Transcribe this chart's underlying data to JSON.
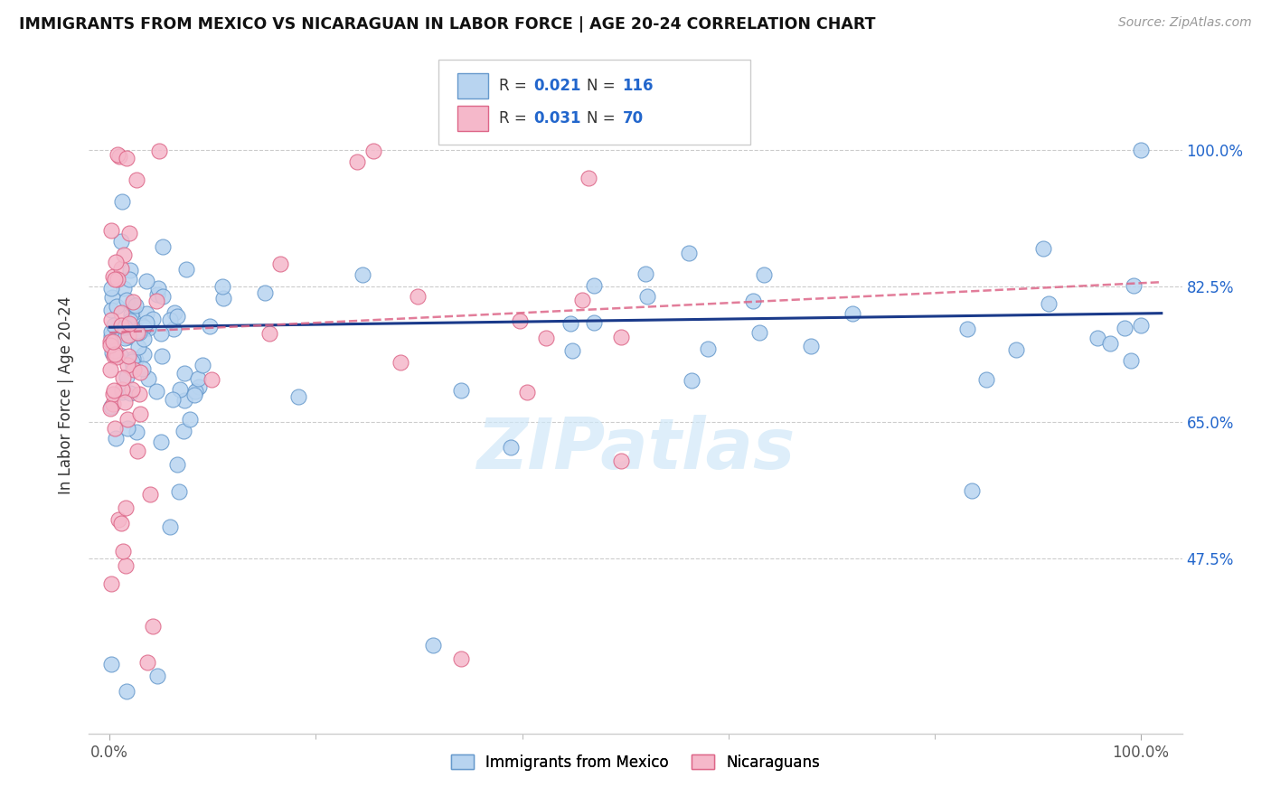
{
  "title": "IMMIGRANTS FROM MEXICO VS NICARAGUAN IN LABOR FORCE | AGE 20-24 CORRELATION CHART",
  "source": "Source: ZipAtlas.com",
  "ylabel": "In Labor Force | Age 20-24",
  "y_tick_labels": [
    "47.5%",
    "65.0%",
    "82.5%",
    "100.0%"
  ],
  "y_tick_values": [
    0.475,
    0.65,
    0.825,
    1.0
  ],
  "xlim": [
    -0.02,
    1.04
  ],
  "ylim": [
    0.25,
    1.12
  ],
  "background_color": "#ffffff",
  "grid_color": "#cccccc",
  "legend_R1": "R = 0.021",
  "legend_N1": "N = 116",
  "legend_R2": "R = 0.031",
  "legend_N2": "N = 70",
  "mexico_color": "#b8d4f0",
  "nicaragua_color": "#f5b8ca",
  "mexico_edge": "#6699cc",
  "nicaragua_edge": "#dd6688",
  "trend_mexico_color": "#1a3a8a",
  "trend_nicaragua_color": "#dd6688",
  "watermark": "ZIPatlas",
  "watermark_color": "#d0e8f8"
}
